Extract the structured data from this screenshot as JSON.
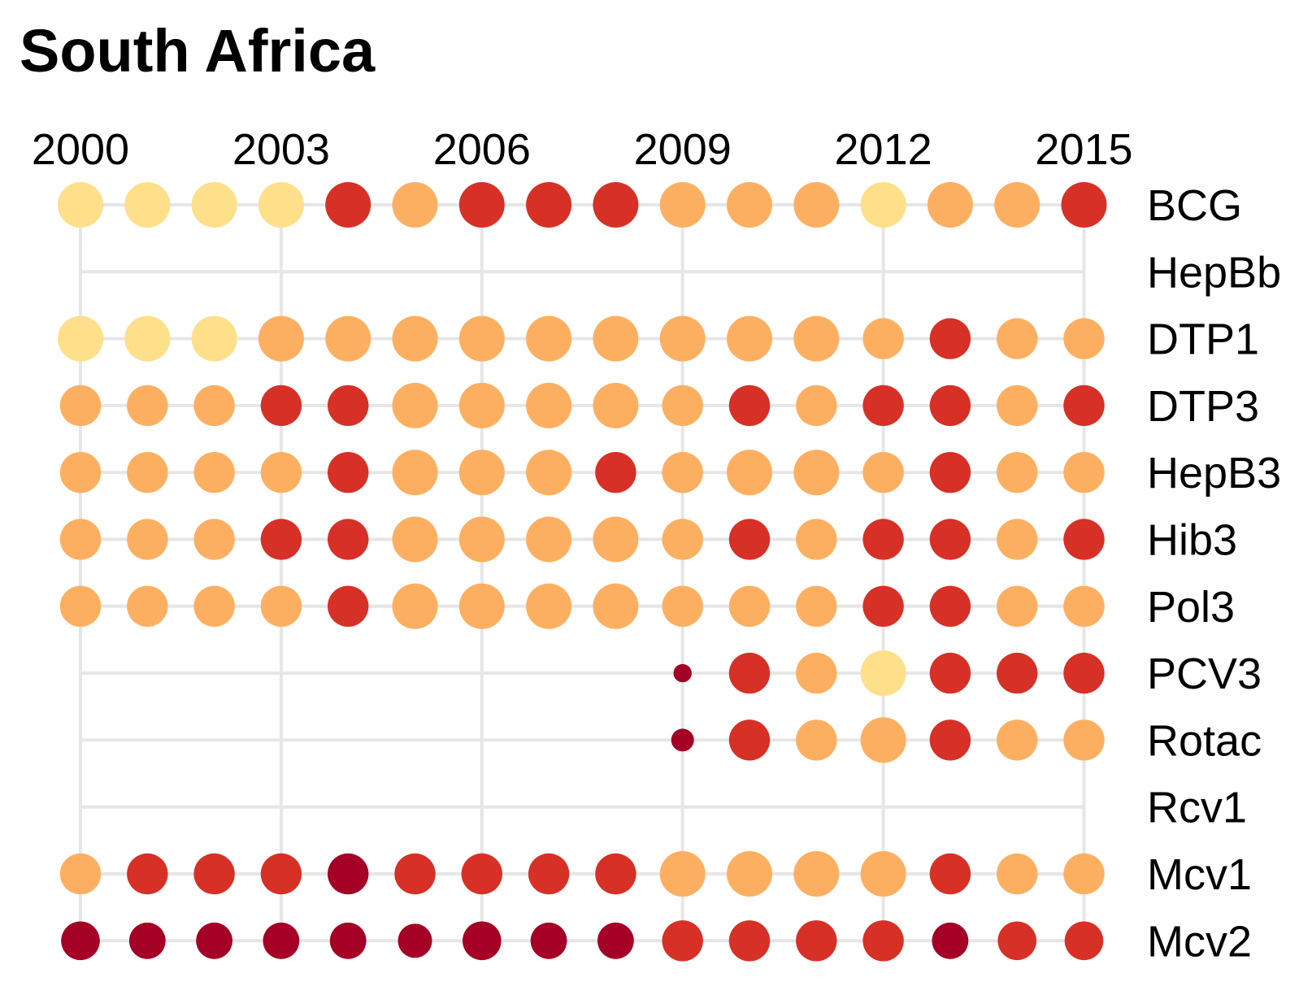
{
  "chart_data": {
    "type": "scatter",
    "title": "South Africa",
    "subtitle": "",
    "xlabel": "",
    "ylabel": "",
    "x_ticks": [
      "2000",
      "2003",
      "2006",
      "2009",
      "2012",
      "2015"
    ],
    "years": [
      2000,
      2001,
      2002,
      2003,
      2004,
      2005,
      2006,
      2007,
      2008,
      2009,
      2010,
      2011,
      2012,
      2013,
      2014,
      2015
    ],
    "grid": true,
    "legend": "none",
    "colors": {
      "light": "#fedf8a",
      "orange": "#fdaf61",
      "red": "#d73027",
      "dark": "#a50026"
    },
    "series": [
      {
        "name": "BCG",
        "color_levels": [
          "light",
          "light",
          "light",
          "light",
          "red",
          "orange",
          "red",
          "red",
          "red",
          "orange",
          "orange",
          "orange",
          "light",
          "orange",
          "orange",
          "red"
        ],
        "sizes": [
          1,
          1,
          1,
          1,
          1,
          1,
          1,
          1,
          1,
          1,
          1,
          1,
          1,
          1,
          1,
          1
        ]
      },
      {
        "name": "HepBb",
        "color_levels": [
          null,
          null,
          null,
          null,
          null,
          null,
          null,
          null,
          null,
          null,
          null,
          null,
          null,
          null,
          null,
          null
        ],
        "sizes": [
          0,
          0,
          0,
          0,
          0,
          0,
          0,
          0,
          0,
          0,
          0,
          0,
          0,
          0,
          0,
          0
        ]
      },
      {
        "name": "DTP1",
        "color_levels": [
          "light",
          "light",
          "light",
          "orange",
          "orange",
          "orange",
          "orange",
          "orange",
          "orange",
          "orange",
          "orange",
          "orange",
          "orange",
          "red",
          "orange",
          "orange"
        ],
        "sizes": [
          1,
          1,
          1,
          1,
          1,
          1,
          1,
          1,
          1,
          1,
          1,
          1,
          0.9,
          0.9,
          0.9,
          0.9
        ]
      },
      {
        "name": "DTP3",
        "color_levels": [
          "orange",
          "orange",
          "orange",
          "red",
          "red",
          "orange",
          "orange",
          "orange",
          "orange",
          "orange",
          "red",
          "orange",
          "red",
          "red",
          "orange",
          "red"
        ],
        "sizes": [
          0.9,
          0.9,
          0.9,
          0.9,
          0.9,
          1,
          1,
          1,
          1,
          0.9,
          0.9,
          0.9,
          0.9,
          0.9,
          0.9,
          0.9
        ]
      },
      {
        "name": "HepB3",
        "color_levels": [
          "orange",
          "orange",
          "orange",
          "orange",
          "red",
          "orange",
          "orange",
          "orange",
          "red",
          "orange",
          "orange",
          "orange",
          "orange",
          "red",
          "orange",
          "orange"
        ],
        "sizes": [
          0.9,
          0.9,
          0.9,
          0.9,
          0.9,
          1,
          1,
          1,
          0.9,
          0.9,
          1,
          1,
          0.9,
          0.9,
          0.9,
          0.9
        ]
      },
      {
        "name": "Hib3",
        "color_levels": [
          "orange",
          "orange",
          "orange",
          "red",
          "red",
          "orange",
          "orange",
          "orange",
          "orange",
          "orange",
          "red",
          "orange",
          "red",
          "red",
          "orange",
          "red"
        ],
        "sizes": [
          0.9,
          0.9,
          0.9,
          0.9,
          0.9,
          1,
          1,
          1,
          1,
          0.9,
          0.9,
          0.9,
          0.9,
          0.9,
          0.9,
          0.9
        ]
      },
      {
        "name": "Pol3",
        "color_levels": [
          "orange",
          "orange",
          "orange",
          "orange",
          "red",
          "orange",
          "orange",
          "orange",
          "orange",
          "orange",
          "orange",
          "orange",
          "red",
          "red",
          "orange",
          "orange"
        ],
        "sizes": [
          0.9,
          0.9,
          0.9,
          0.9,
          0.9,
          1,
          1,
          1,
          1,
          0.9,
          0.9,
          0.9,
          0.9,
          0.9,
          0.9,
          0.9
        ]
      },
      {
        "name": "PCV3",
        "color_levels": [
          null,
          null,
          null,
          null,
          null,
          null,
          null,
          null,
          null,
          "dark",
          "red",
          "orange",
          "light",
          "red",
          "red",
          "red"
        ],
        "sizes": [
          0,
          0,
          0,
          0,
          0,
          0,
          0,
          0,
          0,
          0.4,
          0.9,
          0.9,
          1,
          0.9,
          0.9,
          0.9
        ]
      },
      {
        "name": "Rotac",
        "color_levels": [
          null,
          null,
          null,
          null,
          null,
          null,
          null,
          null,
          null,
          "dark",
          "red",
          "orange",
          "orange",
          "red",
          "orange",
          "orange"
        ],
        "sizes": [
          0,
          0,
          0,
          0,
          0,
          0,
          0,
          0,
          0,
          0.5,
          0.9,
          0.9,
          1,
          0.9,
          0.9,
          0.9
        ]
      },
      {
        "name": "Rcv1",
        "color_levels": [
          null,
          null,
          null,
          null,
          null,
          null,
          null,
          null,
          null,
          null,
          null,
          null,
          null,
          null,
          null,
          null
        ],
        "sizes": [
          0,
          0,
          0,
          0,
          0,
          0,
          0,
          0,
          0,
          0,
          0,
          0,
          0,
          0,
          0,
          0
        ]
      },
      {
        "name": "Mcv1",
        "color_levels": [
          "orange",
          "red",
          "red",
          "red",
          "dark",
          "red",
          "red",
          "red",
          "red",
          "orange",
          "orange",
          "orange",
          "orange",
          "red",
          "orange",
          "orange"
        ],
        "sizes": [
          0.9,
          0.9,
          0.9,
          0.9,
          0.9,
          0.9,
          0.9,
          0.9,
          0.9,
          1,
          1,
          1,
          1,
          0.9,
          0.9,
          0.9
        ]
      },
      {
        "name": "Mcv2",
        "color_levels": [
          "dark",
          "dark",
          "dark",
          "dark",
          "dark",
          "dark",
          "dark",
          "dark",
          "dark",
          "red",
          "red",
          "red",
          "red",
          "dark",
          "red",
          "red"
        ],
        "sizes": [
          0.85,
          0.8,
          0.8,
          0.8,
          0.8,
          0.75,
          0.85,
          0.8,
          0.8,
          0.9,
          0.9,
          0.9,
          0.9,
          0.8,
          0.85,
          0.85
        ]
      }
    ]
  }
}
